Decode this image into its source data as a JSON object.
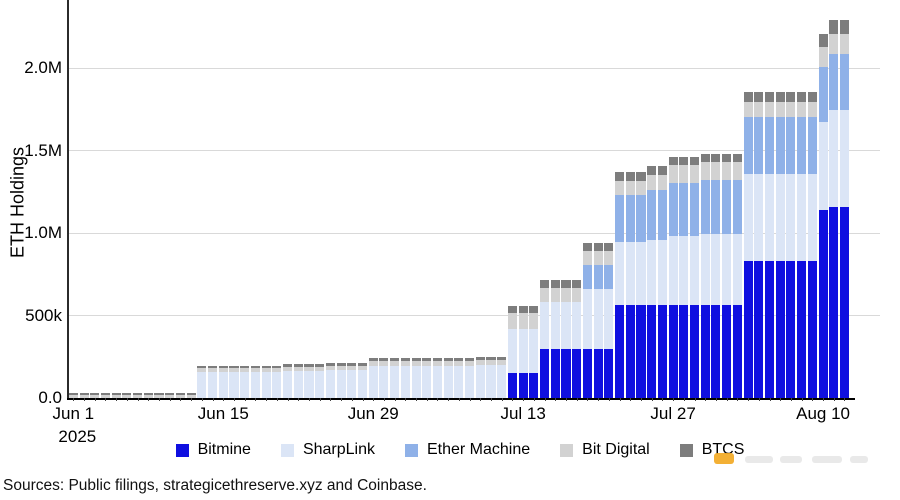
{
  "y_axis": {
    "title": "ETH Holdings"
  },
  "x_axis": {
    "year_label": "2025"
  },
  "source_note": "Sources: Public filings, strategicethreserve.xyz and Coinbase.",
  "legend": {
    "items": [
      {
        "label": "Bitmine",
        "color": "#0f0fe0"
      },
      {
        "label": "SharpLink",
        "color": "#dbe5f6"
      },
      {
        "label": "Ether Machine",
        "color": "#8fb1e8"
      },
      {
        "label": "Bit Digital",
        "color": "#d2d2d2"
      },
      {
        "label": "BTCS",
        "color": "#7d7d7d"
      }
    ]
  },
  "chart_data": {
    "type": "bar",
    "stacked": true,
    "title": "",
    "ylabel": "ETH Holdings",
    "unit": "thousand ETH",
    "ylim_k": [
      0,
      2400
    ],
    "grid": true,
    "legend_position": "bottom",
    "yticks": [
      {
        "v": 0,
        "label": "0.0"
      },
      {
        "v": 500,
        "label": "500k"
      },
      {
        "v": 1000,
        "label": "1.0M"
      },
      {
        "v": 1500,
        "label": "1.5M"
      },
      {
        "v": 2000,
        "label": "2.0M"
      }
    ],
    "xticks": [
      {
        "day": 0,
        "label": "Jun 1"
      },
      {
        "day": 14,
        "label": "Jun 15"
      },
      {
        "day": 28,
        "label": "Jun 29"
      },
      {
        "day": 42,
        "label": "Jul 13"
      },
      {
        "day": 56,
        "label": "Jul 27"
      },
      {
        "day": 70,
        "label": "Aug 10"
      }
    ],
    "x": [
      "Jun 1",
      "Jun 2",
      "Jun 3",
      "Jun 4",
      "Jun 5",
      "Jun 6",
      "Jun 7",
      "Jun 8",
      "Jun 9",
      "Jun 10",
      "Jun 11",
      "Jun 12",
      "Jun 13",
      "Jun 14",
      "Jun 15",
      "Jun 16",
      "Jun 17",
      "Jun 18",
      "Jun 19",
      "Jun 20",
      "Jun 21",
      "Jun 22",
      "Jun 23",
      "Jun 24",
      "Jun 25",
      "Jun 26",
      "Jun 27",
      "Jun 28",
      "Jun 29",
      "Jun 30",
      "Jul 1",
      "Jul 2",
      "Jul 3",
      "Jul 4",
      "Jul 5",
      "Jul 6",
      "Jul 7",
      "Jul 8",
      "Jul 9",
      "Jul 10",
      "Jul 11",
      "Jul 12",
      "Jul 13",
      "Jul 14",
      "Jul 15",
      "Jul 16",
      "Jul 17",
      "Jul 18",
      "Jul 19",
      "Jul 20",
      "Jul 21",
      "Jul 22",
      "Jul 23",
      "Jul 24",
      "Jul 25",
      "Jul 26",
      "Jul 27",
      "Jul 28",
      "Jul 29",
      "Jul 30",
      "Jul 31",
      "Aug 1",
      "Aug 2",
      "Aug 3",
      "Aug 4",
      "Aug 5",
      "Aug 6",
      "Aug 7",
      "Aug 8",
      "Aug 9",
      "Aug 10",
      "Aug 11",
      "Aug 12"
    ],
    "series": [
      {
        "name": "Bitmine",
        "color": "#0f0fe0",
        "values": [
          0,
          0,
          0,
          0,
          0,
          0,
          0,
          0,
          0,
          0,
          0,
          0,
          0,
          0,
          0,
          0,
          0,
          0,
          0,
          0,
          0,
          0,
          0,
          0,
          0,
          0,
          0,
          0,
          0,
          0,
          0,
          0,
          0,
          0,
          0,
          0,
          0,
          0,
          0,
          0,
          0,
          150,
          150,
          150,
          300,
          300,
          300,
          300,
          300,
          300,
          300,
          566,
          566,
          566,
          566,
          566,
          566,
          566,
          566,
          566,
          566,
          566,
          566,
          833,
          833,
          833,
          833,
          833,
          833,
          833,
          1140,
          1160,
          1160
        ]
      },
      {
        "name": "SharpLink",
        "color": "#dbe5f6",
        "values": [
          0,
          0,
          0,
          0,
          0,
          0,
          0,
          0,
          0,
          0,
          0,
          0,
          160,
          160,
          160,
          160,
          160,
          160,
          160,
          160,
          163,
          163,
          163,
          163,
          170,
          170,
          170,
          170,
          196,
          196,
          196,
          196,
          196,
          196,
          196,
          196,
          196,
          196,
          200,
          200,
          200,
          268,
          268,
          268,
          280,
          280,
          280,
          280,
          360,
          360,
          360,
          380,
          380,
          380,
          395,
          395,
          420,
          420,
          420,
          432,
          432,
          432,
          432,
          525,
          525,
          525,
          525,
          525,
          525,
          525,
          535,
          590,
          590
        ]
      },
      {
        "name": "Ether Machine",
        "color": "#8fb1e8",
        "values": [
          0,
          0,
          0,
          0,
          0,
          0,
          0,
          0,
          0,
          0,
          0,
          0,
          0,
          0,
          0,
          0,
          0,
          0,
          0,
          0,
          0,
          0,
          0,
          0,
          0,
          0,
          0,
          0,
          0,
          0,
          0,
          0,
          0,
          0,
          0,
          0,
          0,
          0,
          0,
          0,
          0,
          0,
          0,
          0,
          0,
          0,
          0,
          0,
          150,
          150,
          150,
          285,
          285,
          285,
          300,
          300,
          320,
          320,
          320,
          325,
          325,
          325,
          325,
          345,
          345,
          345,
          345,
          345,
          345,
          345,
          335,
          340,
          340
        ]
      },
      {
        "name": "Bit Digital",
        "color": "#d2d2d2",
        "values": [
          20,
          20,
          20,
          20,
          20,
          20,
          20,
          20,
          20,
          20,
          20,
          20,
          22,
          22,
          22,
          22,
          22,
          22,
          22,
          22,
          26,
          26,
          26,
          26,
          27,
          27,
          27,
          27,
          27,
          27,
          27,
          27,
          27,
          27,
          27,
          27,
          27,
          27,
          28,
          28,
          28,
          100,
          100,
          100,
          90,
          90,
          90,
          90,
          83,
          83,
          83,
          87,
          87,
          87,
          90,
          90,
          108,
          108,
          108,
          110,
          110,
          110,
          110,
          92,
          92,
          92,
          92,
          92,
          92,
          92,
          118,
          120,
          120
        ]
      },
      {
        "name": "BTCS",
        "color": "#7d7d7d",
        "values": [
          12,
          12,
          12,
          12,
          12,
          12,
          12,
          12,
          12,
          12,
          12,
          12,
          12,
          12,
          12,
          12,
          12,
          12,
          12,
          12,
          16,
          16,
          16,
          16,
          17,
          17,
          17,
          17,
          17,
          17,
          17,
          17,
          17,
          17,
          17,
          17,
          17,
          17,
          18,
          18,
          18,
          42,
          42,
          42,
          45,
          45,
          45,
          45,
          48,
          48,
          48,
          54,
          54,
          54,
          57,
          57,
          46,
          46,
          46,
          50,
          50,
          50,
          50,
          62,
          62,
          62,
          62,
          62,
          62,
          62,
          80,
          85,
          85
        ]
      }
    ]
  }
}
